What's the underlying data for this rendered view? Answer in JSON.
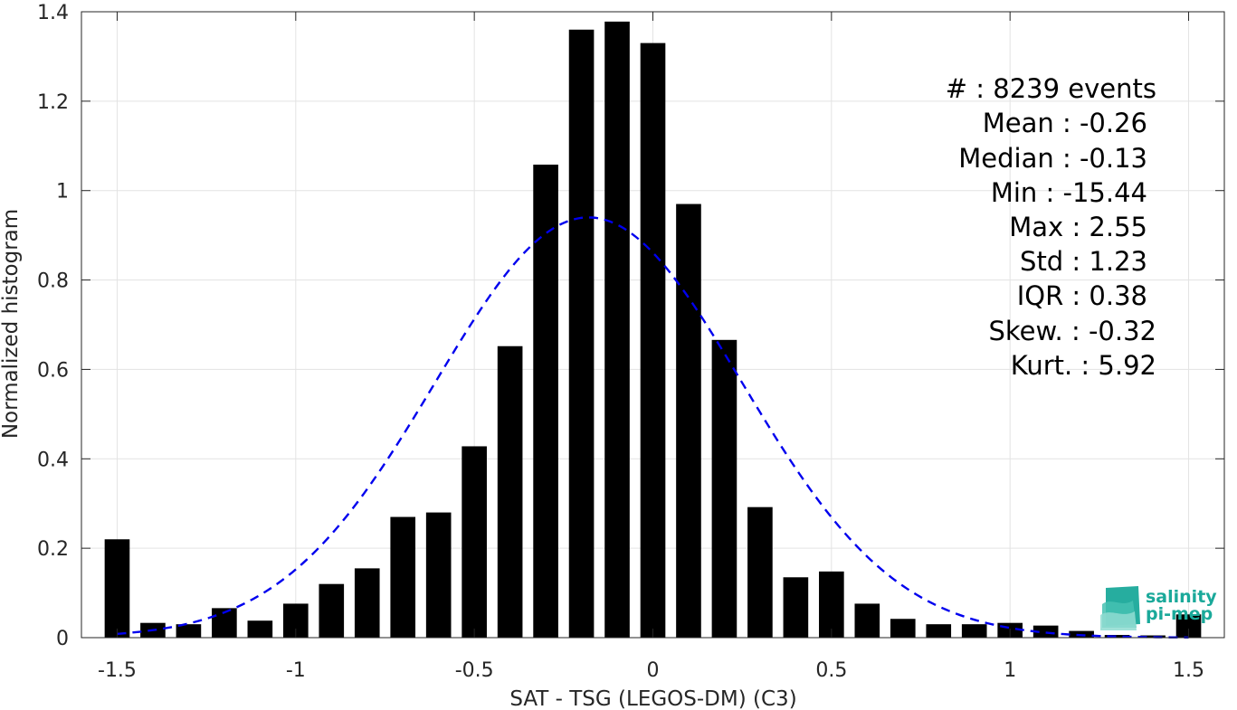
{
  "chart_data": {
    "type": "bar",
    "xlabel": "SAT - TSG (LEGOS-DM) (C3)",
    "ylabel": "Normalized histogram",
    "xlim": [
      -1.6,
      1.6
    ],
    "ylim": [
      0,
      1.4
    ],
    "xticks": [
      -1.5,
      -1,
      -0.5,
      0,
      0.5,
      1,
      1.5
    ],
    "xtick_labels": [
      "-1.5",
      "-1",
      "-0.5",
      "0",
      "0.5",
      "1",
      "1.5"
    ],
    "yticks": [
      0,
      0.2,
      0.4,
      0.6,
      0.8,
      1,
      1.2,
      1.4
    ],
    "ytick_labels": [
      "0",
      "0.2",
      "0.4",
      "0.6",
      "0.8",
      "1",
      "1.2",
      "1.4"
    ],
    "grid": true,
    "bar_width": 0.07,
    "x": [
      -1.5,
      -1.4,
      -1.3,
      -1.2,
      -1.1,
      -1.0,
      -0.9,
      -0.8,
      -0.7,
      -0.6,
      -0.5,
      -0.4,
      -0.3,
      -0.2,
      -0.1,
      0.0,
      0.1,
      0.2,
      0.3,
      0.4,
      0.5,
      0.6,
      0.7,
      0.8,
      0.9,
      1.0,
      1.1,
      1.2,
      1.3,
      1.4,
      1.5
    ],
    "values": [
      0.22,
      0.033,
      0.03,
      0.066,
      0.038,
      0.076,
      0.12,
      0.155,
      0.27,
      0.28,
      0.428,
      0.652,
      1.058,
      1.36,
      1.378,
      1.33,
      0.97,
      0.666,
      0.292,
      0.135,
      0.148,
      0.076,
      0.042,
      0.03,
      0.03,
      0.033,
      0.027,
      0.015,
      0.006,
      0.005,
      0.052
    ],
    "fit_curve": {
      "style": "dashed",
      "color": "#0000ee",
      "mean": -0.18,
      "std": 0.43,
      "peak": 0.94,
      "x_range": [
        -1.5,
        1.5
      ]
    },
    "bar_color": "#000000"
  },
  "stats": [
    {
      "text": "#  : 8239 events"
    },
    {
      "text": "Mean : -0.26"
    },
    {
      "text": "Median : -0.13"
    },
    {
      "text": "Min : -15.44"
    },
    {
      "text": "Max : 2.55"
    },
    {
      "text": "Std : 1.23"
    },
    {
      "text": "IQR : 0.38"
    },
    {
      "text": "Skew. : -0.32"
    },
    {
      "text": "Kurt. : 5.92"
    }
  ],
  "logo": {
    "line1": "salinity",
    "line2": "pi-mep",
    "color": "#1aa99a"
  }
}
